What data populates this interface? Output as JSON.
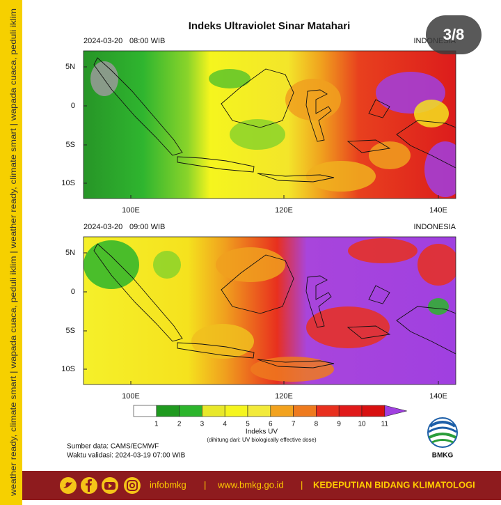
{
  "side_text": "weather ready, climate smart | wapada cuaca, peduli iklim | weather ready, climate smart | wapada cuaca, peduli iklim",
  "title": "Indeks Ultraviolet Sinar Matahari",
  "page_badge": "3/8",
  "panels": [
    {
      "date": "2024-03-20",
      "time": "08:00 WIB",
      "region": "INDONESIA",
      "y_labels": [
        "5N",
        "0",
        "5S",
        "10S"
      ],
      "x_labels": [
        "100E",
        "120E",
        "140E"
      ]
    },
    {
      "date": "2024-03-20",
      "time": "09:00 WIB",
      "region": "INDONESIA",
      "y_labels": [
        "5N",
        "0",
        "5S",
        "10S"
      ],
      "x_labels": [
        "100E",
        "120E",
        "140E"
      ]
    }
  ],
  "colorbar": {
    "labels": [
      "1",
      "2",
      "3",
      "4",
      "5",
      "6",
      "7",
      "8",
      "9",
      "10",
      "11"
    ],
    "colors": [
      "#ffffff",
      "#1f9a1f",
      "#2cb52c",
      "#e8e82a",
      "#f5f51e",
      "#f2ea3a",
      "#f2a21e",
      "#ee7a1e",
      "#e8301e",
      "#e01a1a",
      "#d81010",
      "#a040e0"
    ],
    "title": "Indeks UV",
    "note": "(dihitung dari: UV biologically effective dose)"
  },
  "source": "Sumber data: CAMS/ECMWF",
  "validity": "Waktu validasi: 2024-03-19 07:00 WIB",
  "logo": "BMKG",
  "footer": {
    "handle": "infobmkg",
    "separator": "|",
    "website": "www.bmkg.go.id",
    "department": "KEDEPUTIAN BIDANG KLIMATOLOGI"
  }
}
